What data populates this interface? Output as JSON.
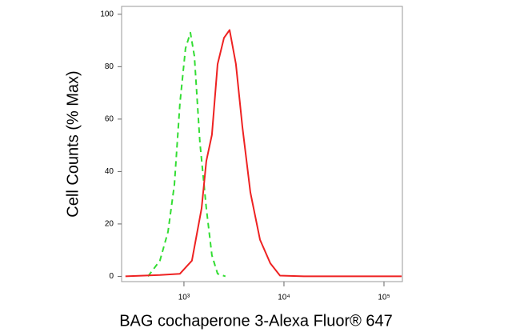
{
  "chart_data": {
    "type": "line",
    "x_label": "BAG cochaperone 3-Alexa Fluor® 647",
    "y_label": "Cell Counts (% Max)",
    "x_scale": "log",
    "xlim": [
      238,
      152800
    ],
    "ylim": [
      -2,
      103
    ],
    "xticks": [
      {
        "value": 1000,
        "label": "10³"
      },
      {
        "value": 10000,
        "label": "10⁴"
      },
      {
        "value": 100000,
        "label": "10⁵"
      }
    ],
    "yticks": [
      0,
      20,
      40,
      60,
      80,
      100
    ],
    "series": [
      {
        "color": "#33dd33",
        "line_style": "dashed",
        "x": [
          437,
          575,
          692,
          802,
          912,
          1037,
          1159,
          1271,
          1445,
          1675,
          1905,
          2168,
          2600
        ],
        "values": [
          0,
          6,
          17,
          35,
          66,
          87,
          93,
          84,
          51,
          26,
          8,
          1,
          0
        ]
      },
      {
        "color": "#ee2222",
        "line_style": "solid",
        "x": [
          260,
          575,
          912,
          1202,
          1500,
          1675,
          1905,
          2168,
          2512,
          2860,
          3311,
          3837,
          4613,
          5754,
          7300,
          9120,
          15850,
          150000
        ],
        "values": [
          0,
          0.5,
          1,
          6,
          26,
          44,
          54,
          81,
          91,
          94,
          81,
          57,
          32,
          14,
          5,
          0.3,
          0,
          0
        ]
      }
    ]
  }
}
